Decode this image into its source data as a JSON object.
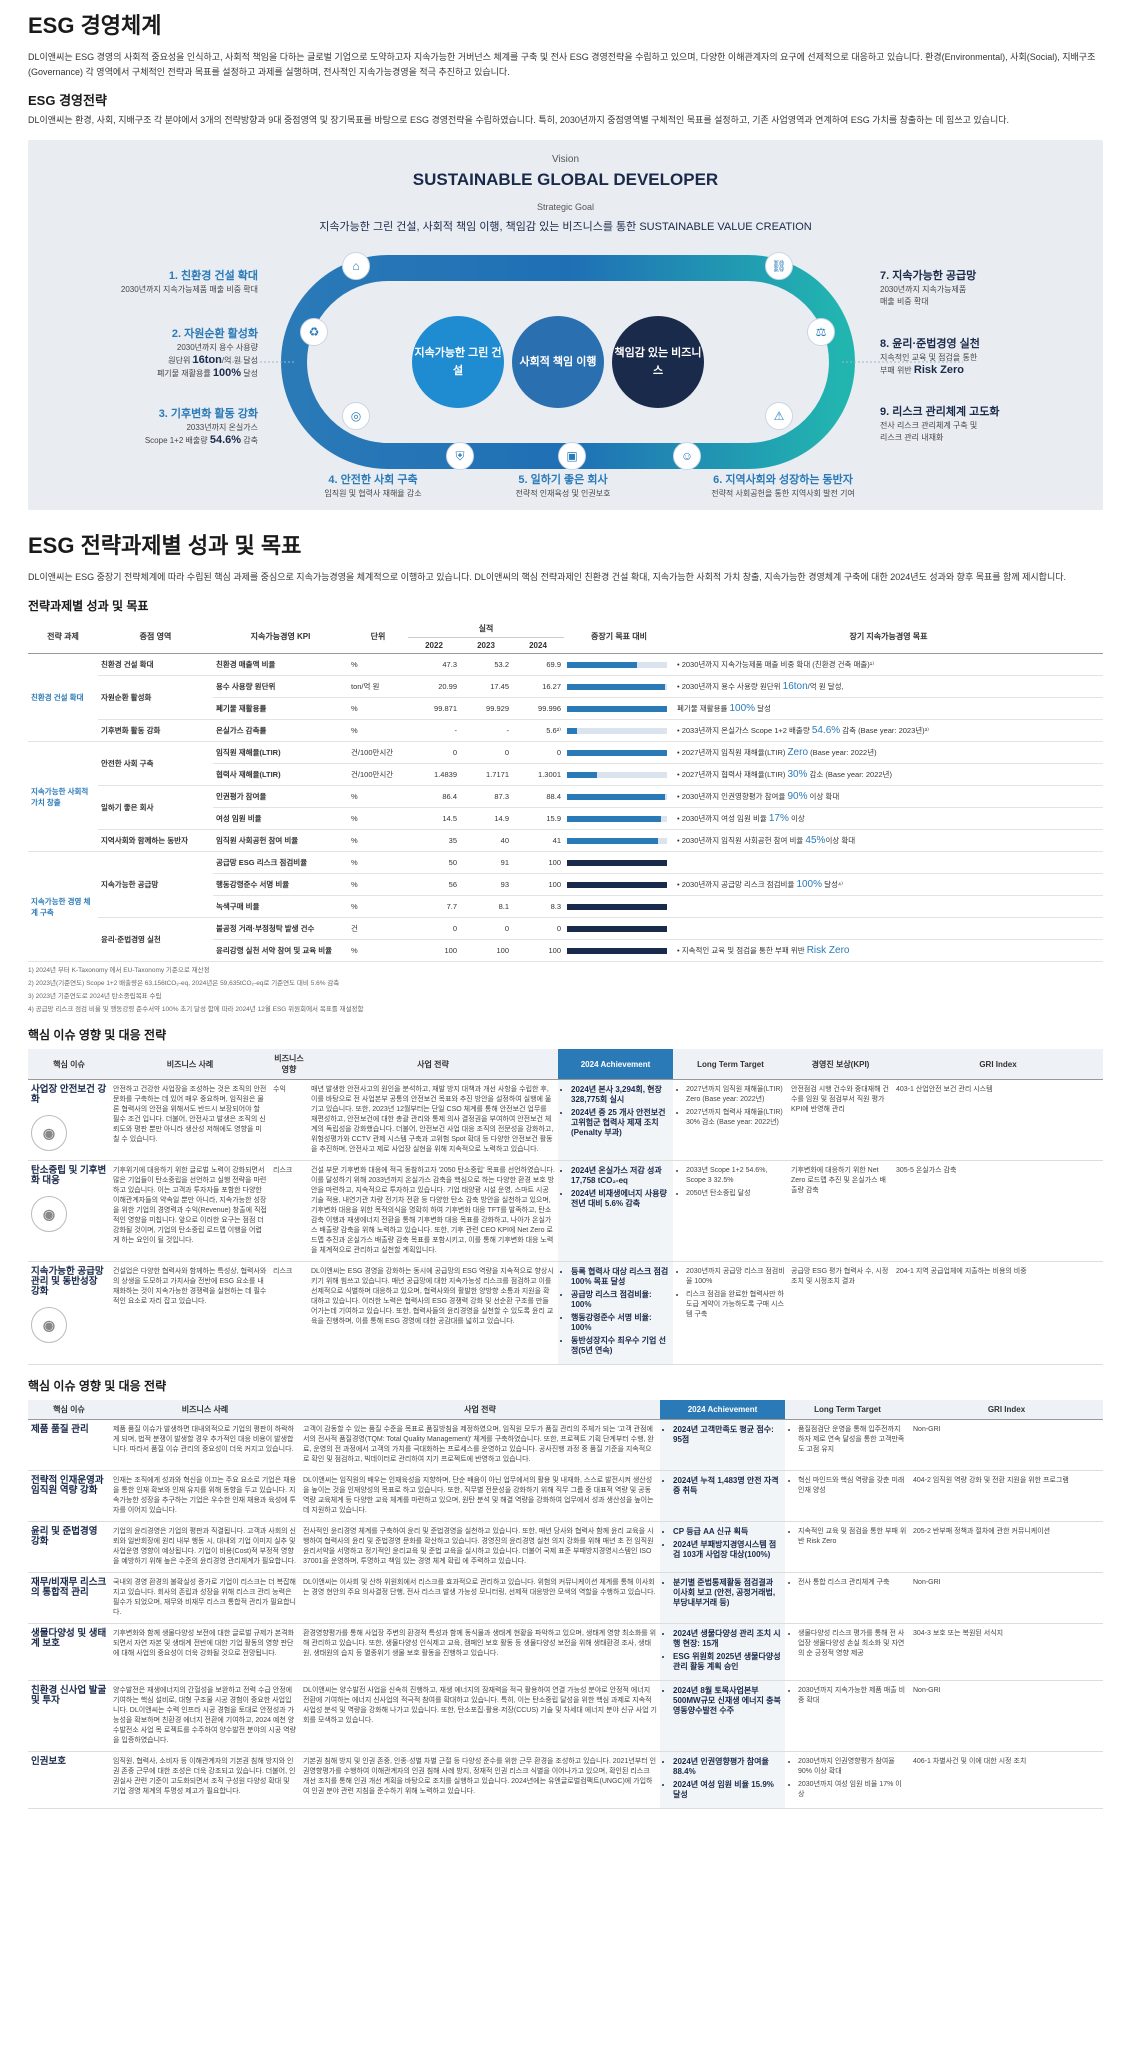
{
  "s1": {
    "title": "ESG 경영체계",
    "intro": "DL이앤씨는 ESG 경영의 사회적 중요성을 인식하고, 사회적 책임을 다하는 글로벌 기업으로 도약하고자 지속가능한 거버넌스 체계를 구축 및 전사 ESG 경영전략을 수립하고 있으며, 다양한 이해관계자의 요구에 선제적으로 대응하고 있습니다. 환경(Environmental), 사회(Social), 지배구조(Governance) 각 영역에서 구체적인 전략과 목표를 설정하고 과제를 실행하며, 전사적인 지속가능경영을 적극 추진하고 있습니다.",
    "sub": "ESG 경영전략",
    "sub_text": "DL이앤씨는 환경, 사회, 지배구조 각 분야에서 3개의 전략방향과 9대 중점영역 및 장기목표를 바탕으로 ESG 경영전략을 수립하였습니다. 특히, 2030년까지 중점영역별 구체적인 목표를 설정하고, 기존 사업영역과 연계하여 ESG 가치를 창출하는 데 힘쓰고 있습니다."
  },
  "strategy": {
    "vision_label": "Vision",
    "vision": "SUSTAINABLE GLOBAL DEVELOPER",
    "goal_label": "Strategic Goal",
    "goal": "지속가능한 그린 건설, 사회적 책임 이행, 책임감 있는 비즈니스를 통한 SUSTAINABLE VALUE CREATION",
    "circles": [
      "지속가능한 그린 건설",
      "사회적 책임 이행",
      "책임감 있는 비즈니스"
    ],
    "left": [
      {
        "title": "1. 친환경 건설 확대",
        "desc": "2030년까지 지속가능제품 매출 비중 확대"
      },
      {
        "title": "2. 자원순환 활성화",
        "desc1": "2030년까지 용수 사용량",
        "desc2a": "원단위 ",
        "desc2b": "16ton",
        "desc2c": "/억 원 달성",
        "desc3a": "폐기물 재활용률 ",
        "desc3b": "100%",
        "desc3c": " 달성"
      },
      {
        "title": "3. 기후변화 활동 강화",
        "desc1": "2033년까지 온실가스",
        "desc2a": "Scope 1+2 배출량 ",
        "desc2b": "54.6%",
        "desc2c": " 감축"
      }
    ],
    "right": [
      {
        "title": "7. 지속가능한 공급망",
        "desc1": "2030년까지 지속가능제품",
        "desc2": "매출 비중 확대"
      },
      {
        "title": "8. 윤리·준법경영 실천",
        "desc1": "지속적인 교육 및 점검을 통한",
        "desc2a": "부패 위반 ",
        "desc2b": "Risk Zero"
      },
      {
        "title": "9. 리스크 관리체계 고도화",
        "desc1": "전사 리스크 관리체계 구축 및",
        "desc2": "리스크 관리 내재화"
      }
    ],
    "bottom": [
      {
        "title": "4. 안전한 사회 구축",
        "desc": "임직원 및 협력사 재해율 감소"
      },
      {
        "title": "5. 일하기 좋은 회사",
        "desc": "전략적 인재육성 및 인권보호"
      },
      {
        "title": "6. 지역사회와 성장하는 동반자",
        "desc": "전략적 사회공헌을 통한 지역사회 발전 기여"
      }
    ]
  },
  "s2": {
    "title": "ESG 전략과제별 성과 및 목표",
    "intro": "DL이앤씨는 ESG 중장기 전략체계에 따라 수립된 핵심 과제를 중심으로 지속가능경영을 체계적으로 이행하고 있습니다. DL이앤씨의 핵심 전략과제인 친환경 건설 확대, 지속가능한 사회적 가치 창출, 지속가능한 경영체계 구축에 대한 2024년도 성과와 향후 목표를 함께 제시합니다.",
    "table_title": "전략과제별 성과 및 목표"
  },
  "kpi": {
    "headers": {
      "task": "전략 과제",
      "area": "중점 영역",
      "kpi": "지속가능경영 KPI",
      "unit": "단위",
      "actual": "실적",
      "y1": "2022",
      "y2": "2023",
      "y3": "2024",
      "rate": "중장기 목표 대비",
      "goal": "장기 지속가능경영 목표"
    },
    "tasks": [
      "친환경 건설 확대",
      "지속가능한 사회적 가치 창출",
      "지속가능한 경영 체계 구축"
    ],
    "rows": [
      {
        "area": "친환경 건설 확대",
        "kpi": "친환경 매출액 비율",
        "unit": "%",
        "v1": "47.3",
        "v2": "53.2",
        "v3": "69.9",
        "pct": 70,
        "goal": "• 2030년까지 지속가능제품 매출 비중 확대 (친환경 건축 매출)¹⁾"
      },
      {
        "area": "자원순환 활성화",
        "kpi": "용수 사용량 원단위",
        "unit": "ton/억 원",
        "v1": "20.99",
        "v2": "17.45",
        "v3": "16.27",
        "pct": 98,
        "goal_a": "• 2030년까지 용수 사용량 원단위 ",
        "goal_b": "16ton",
        "goal_c": "/억 원 달성,"
      },
      {
        "area": "",
        "kpi": "폐기물 재활용률",
        "unit": "%",
        "v1": "99.871",
        "v2": "99.929",
        "v3": "99.996",
        "pct": 100,
        "goal_a": "폐기물 재활용률 ",
        "goal_b": "100%",
        "goal_c": " 달성"
      },
      {
        "area": "기후변화 활동 강화",
        "kpi": "온실가스 감축률",
        "unit": "%",
        "v1": "-",
        "v2": "-",
        "v3": "5.6²⁾",
        "pct": 10,
        "goal_a": "• 2033년까지 온실가스 Scope 1+2 배출량 ",
        "goal_b": "54.6%",
        "goal_c": " 감축 (Base year: 2023년)³⁾"
      },
      {
        "area": "안전한 사회 구축",
        "kpi": "임직원 재해율(LTIR)",
        "unit": "건/100만시간",
        "v1": "0",
        "v2": "0",
        "v3": "0",
        "pct": 100,
        "goal_a": "• 2027년까지 임직원 재해율(LTIR) ",
        "goal_b": "Zero",
        "goal_c": " (Base year: 2022년)"
      },
      {
        "area": "",
        "kpi": "협력사 재해율(LTIR)",
        "unit": "건/100만시간",
        "v1": "1.4839",
        "v2": "1.7171",
        "v3": "1.3001",
        "pct": 30,
        "goal_a": "• 2027년까지 협력사 재해율(LTIR) ",
        "goal_b": "30%",
        "goal_c": " 감소 (Base year: 2022년)"
      },
      {
        "area": "일하기 좋은 회사",
        "kpi": "인권평가 참여율",
        "unit": "%",
        "v1": "86.4",
        "v2": "87.3",
        "v3": "88.4",
        "pct": 98,
        "goal_a": "• 2030년까지 인권영향평가 참여율 ",
        "goal_b": "90%",
        "goal_c": " 이상 확대"
      },
      {
        "area": "",
        "kpi": "여성 임원 비율",
        "unit": "%",
        "v1": "14.5",
        "v2": "14.9",
        "v3": "15.9",
        "pct": 94,
        "goal_a": "• 2030년까지 여성 임원 비율 ",
        "goal_b": "17%",
        "goal_c": " 이상"
      },
      {
        "area": "지역사회와 함께하는 동반자",
        "kpi": "임직원 사회공헌 참여 비율",
        "unit": "%",
        "v1": "35",
        "v2": "40",
        "v3": "41",
        "pct": 91,
        "goal_a": "• 2030년까지 임직원 사회공헌 참여 비율 ",
        "goal_b": "45%",
        "goal_c": "이상 확대"
      },
      {
        "area": "지속가능한 공급망",
        "kpi": "공급망 ESG 리스크 점검비율",
        "unit": "%",
        "v1": "50",
        "v2": "91",
        "v3": "100",
        "pct": 100,
        "goal_a": "",
        "goal_b": "",
        "goal_c": ""
      },
      {
        "area": "",
        "kpi": "행동강령준수 서명 비율",
        "unit": "%",
        "v1": "56",
        "v2": "93",
        "v3": "100",
        "pct": 100,
        "goal_a": "• 2030년까지 공급망 리스크 점검비율 ",
        "goal_b": "100%",
        "goal_c": " 달성⁴⁾"
      },
      {
        "area": "",
        "kpi": "녹색구매 비율",
        "unit": "%",
        "v1": "7.7",
        "v2": "8.1",
        "v3": "8.3",
        "pct": 100,
        "goal_a": "",
        "goal_b": "",
        "goal_c": ""
      },
      {
        "area": "윤리·준법경영 실천",
        "kpi": "불공정 거래·부정청탁 발생 건수",
        "unit": "건",
        "v1": "0",
        "v2": "0",
        "v3": "0",
        "pct": 100,
        "goal_a": "",
        "goal_b": "",
        "goal_c": ""
      },
      {
        "area": "",
        "kpi": "윤리강령 실천 서약 참여 및 교육 비율",
        "unit": "%",
        "v1": "100",
        "v2": "100",
        "v3": "100",
        "pct": 100,
        "goal_a": "• 지속적인 교육 및 점검을 통한 부패 위반 ",
        "goal_b": "Risk Zero",
        "goal_c": ""
      }
    ],
    "footnotes": [
      "1) 2024년 부터 K-Taxonomy 에서 EU-Taxonomy 기준으로 재산정",
      "2) 2023년(기준연도) Scope 1+2 배출량은 63,156tCO₂-eq, 2024년은 59,635tCO₂-eq로 기준연도 대비 5.6% 감축",
      "3) 2023년 기준연도로 2024년 탄소중립목표 수립",
      "4) 공급망 리스크 점검 비율 및 행동강령 준수서약 100% 초기 달성 함에 따라 2024년 12월 ESG 위원회에서 목표를 재설정함"
    ]
  },
  "m1": {
    "title": "핵심 이슈 영향 및 대응 전략",
    "headers": {
      "issue": "핵심 이슈",
      "biz": "비즈니스 사례",
      "impact": "비즈니스 영향",
      "biz_strategy": "사업 전략",
      "ach": "2024 Achievement",
      "ltt": "Long Term Target",
      "kpi": "경영진 보상(KPI)",
      "gri": "GRI Index"
    },
    "rows": [
      {
        "issue": "사업장 안전보건 강화",
        "biz": "안전하고 건강한 사업장을 조성하는 것은 조직의 안전문화를 구축하는 데 있어 매우 중요하며, 임직원은 물론 협력사의 안전을 위해서도 반드시 보장되어야 할 필수 조건 입니다. 더불어, 안전사고 발생은 조직의 신뢰도와 평판 뿐만 아니라 생산성 저해에도 영향을 미칠 수 있습니다.",
        "impact": "수익",
        "strategy": "매년 발생한 안전사고의 원인을 분석하고, 재발 방지 대책과 개선 사항을 수립한 후, 이를 바탕으로 전 사업본부 공통의 안전보건 목표와 추진 방안을 설정하여 실행에 옮기고 있습니다. 또한, 2023년 12월부터는 단일 CSO 체계를 통해 안전보건 업무를 재편성하고, 안전보건에 대한 총괄 관리와 통제 의사 결정권을 부여하여 안전보건 체계의 독립성을 강화했습니다. 더불어, 안전보건 사업 대응 조직의 전문성을 강화하고, 위험성평가와 CCTV 관제 시스템 구축과 고위험 Spot 확대 등 다양한 안전보건 활동을 추진하며, 안전사고 제로 사업장 실현을 위해 지속적으로 노력하고 있습니다.",
        "ach": [
          "2024년 본사 3,294회, 현장 328,775회 실시",
          "2024년 중 25 개사 안전보건 고위험군 협력사 제재 조치 (Penalty 부과)"
        ],
        "ltt": [
          "2027년까지 임직원 재해율(LTIR) Zero (Base year: 2022년)",
          "2027년까지 협력사 재해율(LTIR) 30% 감소 (Base year: 2022년)"
        ],
        "kpi": "안전점검 시행 건수와 중대재해 건수를 임원 및 점검부서 직원 평가 KPI에 반영해 관리",
        "gri": "403-1 산업안전 보건 관리 시스템"
      },
      {
        "issue": "탄소중립 및 기후변화 대응",
        "biz": "기후위기에 대응하기 위한 글로벌 노력이 강화되면서 많은 기업들이 탄소중립을 선언하고 실행 전략을 마련하고 있습니다. 이는 고객과 투자자들 포함한 다양한 이해관계자들의 약속일 뿐만 아니라, 지속가능한 성장을 위한 기업의 경영력과 수익(Revenue) 창출에 직접적인 영향을 미칩니다. 앞으로 이러한 요구는 점점 더 강화될 것이며, 기업의 탄소중립 로드맵 이행을 어렵게 하는 요인이 될 것입니다.",
        "impact": "리스크",
        "strategy": "건설 부문 기후변화 대응에 적극 동참하고자 '2050 탄소중립' 목표를 선언하였습니다. 이를 달성하기 위해 2033년까지 온실가스 감축을 핵심으로 하는 다양한 환경 보호 방안을 마련하고, 지속적으로 투자하고 있습니다. 기업 태양광 시설 운영, 스마트 시공 기술 적용, 내연기관 차량 전기차 전환 등 다양한 탄소 감축 방안을 실천하고 있으며, 기후변화 대응을 위한 목적의식을 명확히 하여 기후변화 대응 TFT를 발족하고, 탄소 감축 이행과 재생에너지 전환을 통해 기후변화 대응 목표를 강화하고, 나아가 온실가스 배출량 감축을 위해 노력하고 있습니다. 또한, 기후 관련 CEO KPI에 Net Zero 로드맵 추진과 온실가스 배출량 감축 목표를 포함시키고, 이를 통해 기후변화 대응 노력을 체계적으로 관리하고 실천할 계획입니다.",
        "ach": [
          "2024년 온실가스 저감 성과 17,758 tCO₂-eq",
          "2024년 비재생에너지 사용량 전년 대비 5.6% 감축"
        ],
        "ltt": [
          "2033년 Scope 1+2 54.6%, Scope 3 32.5%",
          "2050년 탄소중립 달성"
        ],
        "kpi": "기후변화에 대응하기 위한 Net Zero 로드맵 추진 및 온실가스 배출량 감축",
        "gri": "305-5 온실가스 감축"
      },
      {
        "issue": "지속가능한 공급망관리 및 동반성장 강화",
        "biz": "건설업은 다양한 협력사와 함께하는 특성상, 협력사와의 상생을 도모하고 가치사슬 전반에 ESG 요소를 내재화하는 것이 지속가능한 경쟁력을 실현하는 데 필수적인 요소로 자리 잡고 있습니다.",
        "impact": "리스크",
        "strategy": "DL이앤씨는 ESG 경영을 강화하는 동시에 공급망의 ESG 역량을 지속적으로 향상시키기 위해 힘쓰고 있습니다. 매년 공급망에 대한 지속가능성 리스크를 점검하고 이를 선제적으로 식별하며 대응하고 있으며, 협력사와의 활발한 양방향 소통과 지원을 확대하고 있습니다. 이러한 노력은 협력사의 ESG 경쟁력 강화 및 선순환 구조를 만들어가는데 기여하고 있습니다. 또한, 협력사들의 윤리경영을 실천할 수 있도록 윤리 교육을 진행하며, 이를 통해 ESG 경영에 대한 공감대를 넓히고 있습니다.",
        "ach": [
          "등록 협력사 대상 리스크 점검 100% 목표 달성",
          "공급망 리스크 점검비율: 100%",
          "행동강령준수 서명 비율: 100%",
          "동반성장지수 최우수 기업 선정(5년 연속)"
        ],
        "ltt": [
          "2030년까지 공급망 리스크 점검비율 100%",
          "리스크 점검을 완료한 협력사만 하도급 계약이 가능하도록 구매 시스템 구축"
        ],
        "kpi": "공급망 ESG 평가 협력사 수, 시정조치 및 시정조치 결과",
        "gri": "204-1 지역 공급업체에 지출하는 비용의 비중"
      }
    ]
  },
  "m2": {
    "title": "핵심 이슈 영향 및 대응 전략",
    "headers": {
      "issue": "핵심 이슈",
      "biz": "비즈니스 사례",
      "strategy": "사업 전략",
      "ach": "2024 Achievement",
      "ltt": "Long Term Target",
      "gri": "GRI Index"
    },
    "rows": [
      {
        "issue": "제품 품질 관리",
        "biz": "제품 품질 이슈가 발생하면 대내외적으로 기업의 평판이 하락하게 되며, 법적 분쟁이 발생할 경우 추가적인 대응 비용이 발생합니다. 따라서 품질 이슈 관리의 중요성이 더욱 커지고 있습니다.",
        "strategy": "고객이 감동할 수 있는 품질 수준을 목표로 품질방침을 제정하였으며, 임직원 모두가 품질 관리의 주체가 되는 '고객 관점에서의 전사적 품질경영(TQM: Total Quality Management)' 체계를 구축하였습니다. 또한, 프로젝트 기획 단계부터 수행, 완료, 운영의 전 과정에서 고객의 가치를 극대화하는 프로세스를 운영하고 있습니다. 공사진행 과정 중 품질 기준을 지속적으로 확인 및 점검하고, 빅데이터로 관리하여 지기 프로젝트에 반영하고 있습니다.",
        "ach": [
          "2024년 고객만족도 평균 점수: 95점"
        ],
        "ltt": [
          "품질점검단 운영을 통해 입주전까지 하자 제로 연속 달성을 통한 고객만족도 고점 유지"
        ],
        "gri": "Non-GRI"
      },
      {
        "issue": "전략적 인재운영과 임직원 역량 강화",
        "biz": "인재는 조직에게 성과와 혁신을 이끄는 주요 요소로 기업은 채용을 통한 인재 확보와 인재 유지를 위해 동향을 두고 있습니다. 지속가능한 성장을 추구하는 기업은 우수한 인재 채용과 육성에 투자를 이어지 있습니다.",
        "strategy": "DL이앤씨는 임직원의 배우는 인재육성을 지향하며, 단순 배움이 아닌 업무에서의 활용 및 내재화, 스스로 발전시켜 생산성을 높이는 것을 인재양성의 목표로 하고 있습니다. 또한, 직무별 전문성을 강화하기 위해 직무 그룹 중 대표적 역량 및 공동역량 교육체계 등 다양한 교육 체계를 마련하고 있으며, 원탄 분석 및 해결 역량을 강화하여 업무에서 성과 생산성을 높이는데 지원하고 있습니다.",
        "ach": [
          "2024년 누적 1,483명 안전 자격증 취득"
        ],
        "ltt": [
          "혁신 마인드와 핵심 역량을 갖춘 미래인재 양성"
        ],
        "gri": "404-2 임직원 역량 강화 및 전환 지원을 위한 프로그램"
      },
      {
        "issue": "윤리 및 준법경영 강화",
        "biz": "기업의 윤리경영은 기업의 평판과 직결됩니다. 고객과 사회의 신뢰와 일반회장에 원리 내부 행동 시, 대내외 기업 이미지 실추 및 사업운영 영향이 예상됩니다. 기업이 비용(Cost)적 부정적 영향을 예방하기 위해 높은 수준의 윤리경영 관리체계가 필요합니다.",
        "strategy": "전사적인 윤리경영 체계를 구축하여 윤리 및 준법경영을 실천하고 있습니다. 또한, 매년 당사와 협력사 함께 윤리 교육을 시행하여 협력사의 윤리 및 준법경영 문화를 확산하고 있습니다. 경영진의 윤리경영 실천 의지 강화를 위해 매년 초 전 임직원 윤리서약을 서명하고 정기적인 윤리교육 및 준법 교육을 실시하고 있습니다. 더불어 국제 표준 부패방지경영시스템인 ISO 37001을 운영하며, 투명하고 책임 있는 경영 체계 확립 에 주력하고 있습니다.",
        "ach": [
          "CP 등급 AA 신규 획득",
          "2024년 부패방지경영시스템 점검 103개 사업장 대상(100%)"
        ],
        "ltt": [
          "지속적인 교육 및 점검을 통한 부패 위반 Risk Zero"
        ],
        "gri": "205-2 반부패 정책과 절차에 관한 커뮤니케이션"
      },
      {
        "issue": "재무/비재무 리스크의 통합적 관리",
        "biz": "국내외 경영 환경의 불확실성 증가로 기업이 리스크는 더 복잡해지고 있습니다. 회사의 존립과 성장을 위해 리스크 관리 능력은 필수가 되었으며, 재무와 비재무 리스크 통합적 관리가 필요합니다.",
        "strategy": "DL이앤씨는 이사회 및 산하 위원회에서 리스크를 효과적으로 관리하고 있습니다. 위험의 커뮤니케이션 체계를 통해 이사회는 경영 현안의 주요 의사결정 단행, 전사 리스크 발생 가능성 모니터링, 선제적 대응방안 모색의 역할을 수행하고 있습니다.",
        "ach": [
          "분기별 준법통제활동 점검결과 이사회 보고 (안전, 공정거래법, 부당내부거래 등)"
        ],
        "ltt": [
          "전사 통합 리스크 관리체계 구축"
        ],
        "gri": "Non-GRI"
      },
      {
        "issue": "생물다양성 및 생태계 보호",
        "biz": "기후변화와 함께 생물다양성 보전에 대한 글로벌 규제가 본격화되면서 자연 자본 및 생태계 전반에 대한 기업 활동의 영향 판단에 대해 사업의 중요성이 더욱 강화될 것으로 전망됩니다.",
        "strategy": "환경영향평가를 통해 사업장 주변의 환경적 특성과 함께 동식물과 생태계 현황을 파악하고 있으며, 생태계 영향 최소화를 위해 관리하고 있습니다. 또한, 생물다양성 인식제고 교육, 캠페인 보호 활동 등 생물다양성 보전을 위해 생태환경 조사, 생태원, 생태원의 습지 등 멸종위기 생물 보호 활동을 진행하고 있습니다.",
        "ach": [
          "2024년 생물다양성 관리 조치 시행 현장: 15개",
          "ESG 위원회 2025년 생물다양성 관리 활동 계획 승인"
        ],
        "ltt": [
          "생물다양성 리스크 평가를 통해 전 사업장 생물다양성 손실 최소화 및 자연의 순 긍정적 영향 제공"
        ],
        "gri": "304-3 보호 또는 복원된 서식지"
      },
      {
        "issue": "친환경 신사업 발굴 및 투자",
        "biz": "양수발전은 재생에너지의 간헐성을 보완하고 전력 수급 안정에 기여하는 핵심 설비로, 대형 구조물 시공 경험이 중요한 사업입니다. DL이앤씨는 수력 인프라 시공 경험을 토대로 안정성과 가능성을 확보하며 친환경 에너지 전환에 기여하고, 2024 예천 양수발전소 사업 목 로젝트를 수주하여 양수발전 분야의 시공 역량을 입증하였습니다.",
        "strategy": "DL이앤씨는 양수발전 사업을 신속히 진행하고, 재생 에너지의 잠재력을 적극 활용하여 연결 가능성 분야로 안정적 에너지 전환에 기여하는 에너지 신사업의 적극적 참여를 확대하고 있습니다. 특히, 이는 탄소중립 달성을 위한 핵심 과제로 지속적 사업성 분석 및 역량을 강화해 나가고 있습니다. 또한, 탄소포집·활용·저장(CCUS) 기술 및 차세대 에너지 분야 신규 사업 기회를 모색하고 있습니다.",
        "ach": [
          "2024년 8월 토목사업본부 500MW규모 신재생 에너지 충북 영동양수발전 수주"
        ],
        "ltt": [
          "2030년까지 지속가능한 제품 매출 비중 확대"
        ],
        "gri": "Non-GRI"
      },
      {
        "issue": "인권보호",
        "biz": "임직원, 협력사, 소비자 등 이해관계자의 기본권 침해 방지와 인권 존중 근무에 대한 조성은 더욱 강조되고 있습니다. 더불어, 인권실사 관련 기준이 고도화되면서 조직 구성원 다양성 확대 및 기업 경영 체계의 투명성 제고가 필요합니다.",
        "strategy": "기본권 침해 방지 및 인권 존중, 인종·성별 차별 근절 등 다양성 준수를 위한 근무 환경을 조성하고 있습니다. 2021년부터 인권영향평가를 수행하여 이해관계자의 인권 침해 사례 방지, 정재적 인권 리스크 식별을 이어나가고 있으며, 확인된 리스크 개선 조치를 통해 인권 개선 계획을 바탕으로 조치를 실행하고 있습니다. 2024년에는 유엔글로벌컴팩트(UNGC)에 가입하여 인권 분야 관련 지침을 준수하기 위해 노력하고 있습니다.",
        "ach": [
          "2024년 인권영향평가 참여율 88.4%",
          "2024년 여성 임원 비율 15.9% 달성"
        ],
        "ltt": [
          "2030년까지 인권영향평가 참여율 90% 이상 확대",
          "2030년까지 여성 임원 비율 17% 이상"
        ],
        "gri": "406-1 차별사건 및 이에 대한 시정 조치"
      }
    ]
  }
}
